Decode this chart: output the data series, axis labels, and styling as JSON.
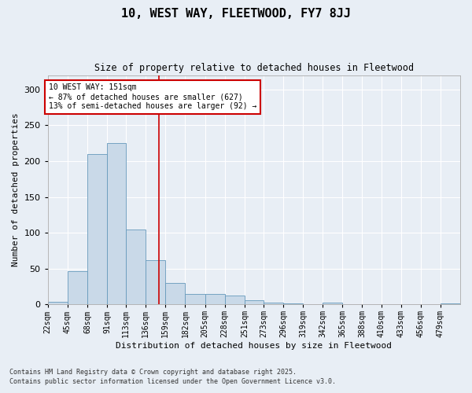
{
  "title_line1": "10, WEST WAY, FLEETWOOD, FY7 8JJ",
  "title_line2": "Size of property relative to detached houses in Fleetwood",
  "xlabel": "Distribution of detached houses by size in Fleetwood",
  "ylabel": "Number of detached properties",
  "bar_edges": [
    22,
    45,
    68,
    91,
    113,
    136,
    159,
    182,
    205,
    228,
    251,
    273,
    296,
    319,
    342,
    365,
    388,
    410,
    433,
    456,
    479,
    502
  ],
  "bar_heights": [
    4,
    46,
    210,
    225,
    105,
    62,
    30,
    15,
    15,
    12,
    6,
    3,
    1,
    0,
    2,
    0,
    0,
    0,
    0,
    0,
    1
  ],
  "bar_labels": [
    "22sqm",
    "45sqm",
    "68sqm",
    "91sqm",
    "113sqm",
    "136sqm",
    "159sqm",
    "182sqm",
    "205sqm",
    "228sqm",
    "251sqm",
    "273sqm",
    "296sqm",
    "319sqm",
    "342sqm",
    "365sqm",
    "388sqm",
    "410sqm",
    "433sqm",
    "456sqm",
    "479sqm"
  ],
  "bar_color": "#c9d9e8",
  "bar_edge_color": "#6699bb",
  "vline_x": 151,
  "vline_color": "#cc0000",
  "annotation_text": "10 WEST WAY: 151sqm\n← 87% of detached houses are smaller (627)\n13% of semi-detached houses are larger (92) →",
  "annotation_box_color": "#ffffff",
  "annotation_box_edge_color": "#cc0000",
  "bg_color": "#e8eef5",
  "grid_color": "#ffffff",
  "ylim": [
    0,
    320
  ],
  "yticks": [
    0,
    50,
    100,
    150,
    200,
    250,
    300
  ],
  "footer_line1": "Contains HM Land Registry data © Crown copyright and database right 2025.",
  "footer_line2": "Contains public sector information licensed under the Open Government Licence v3.0."
}
